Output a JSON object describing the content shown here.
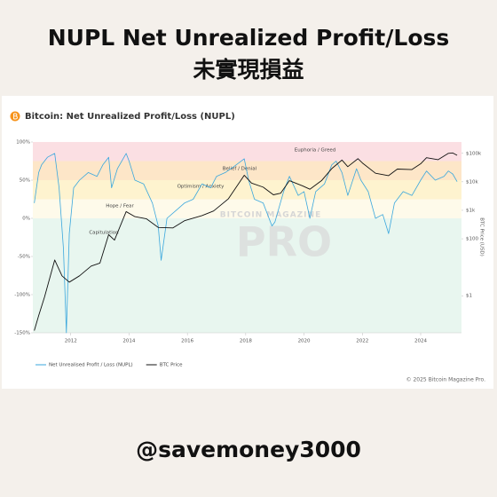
{
  "header": {
    "title": "NUPL Net Unrealized Profit/Loss",
    "subtitle": "未實現損益"
  },
  "chart_data": {
    "type": "line",
    "title": "Bitcoin: Net Unrealized Profit/Loss (NUPL)",
    "xlim": [
      2010.7,
      2025.4
    ],
    "xticks": [
      2012,
      2014,
      2016,
      2018,
      2020,
      2022,
      2024
    ],
    "ylim": [
      -150,
      100
    ],
    "yticks": [
      {
        "value": 100,
        "label": "100%"
      },
      {
        "value": 50,
        "label": "50%"
      },
      {
        "value": 0,
        "label": "0%"
      },
      {
        "value": -50,
        "label": "-50%"
      },
      {
        "value": -100,
        "label": "-100%"
      },
      {
        "value": -150,
        "label": "-150%"
      }
    ],
    "y2lim": [
      0.05,
      250000
    ],
    "y2scale": "log",
    "y2label": "BTC Price (USD)",
    "y2ticks": [
      {
        "value": 100000,
        "label": "$100k"
      },
      {
        "value": 10000,
        "label": "$10k"
      },
      {
        "value": 1000,
        "label": "$1k"
      },
      {
        "value": 100,
        "label": "$100"
      },
      {
        "value": 1,
        "label": "$1"
      }
    ],
    "zones": [
      {
        "label": "Euphoria / Greed",
        "from": 75,
        "to": 100,
        "color": "#fbdfe3"
      },
      {
        "label": "Belief / Denial",
        "from": 50,
        "to": 75,
        "color": "#fde6c8"
      },
      {
        "label": "Optimism / Anxiety",
        "from": 25,
        "to": 50,
        "color": "#fef3cf"
      },
      {
        "label": "Hope / Fear",
        "from": 0,
        "to": 25,
        "color": "#fefaea"
      },
      {
        "label": "Capitulation",
        "from": -150,
        "to": 0,
        "color": "#e8f6ef"
      }
    ],
    "series": [
      {
        "name": "Net Unrealised Profit / Loss (NUPL)",
        "color": "#3aa7dd",
        "x": [
          2010.75,
          2010.9,
          2011.0,
          2011.2,
          2011.45,
          2011.6,
          2011.75,
          2011.85,
          2011.95,
          2012.1,
          2012.3,
          2012.6,
          2012.9,
          2013.1,
          2013.3,
          2013.4,
          2013.6,
          2013.9,
          2014.0,
          2014.2,
          2014.5,
          2014.8,
          2015.0,
          2015.1,
          2015.3,
          2015.6,
          2015.9,
          2016.2,
          2016.5,
          2016.8,
          2017.0,
          2017.3,
          2017.6,
          2017.95,
          2018.1,
          2018.3,
          2018.6,
          2018.9,
          2019.0,
          2019.3,
          2019.5,
          2019.8,
          2020.0,
          2020.2,
          2020.4,
          2020.7,
          2020.95,
          2021.1,
          2021.3,
          2021.5,
          2021.8,
          2021.95,
          2022.2,
          2022.45,
          2022.7,
          2022.9,
          2023.1,
          2023.4,
          2023.7,
          2024.0,
          2024.2,
          2024.5,
          2024.8,
          2024.95,
          2025.1,
          2025.25
        ],
        "values": [
          20,
          60,
          70,
          80,
          85,
          40,
          -40,
          -150,
          -20,
          40,
          50,
          60,
          55,
          70,
          80,
          40,
          65,
          85,
          75,
          50,
          45,
          20,
          -10,
          -55,
          0,
          10,
          20,
          25,
          45,
          40,
          55,
          60,
          68,
          78,
          50,
          25,
          20,
          -10,
          -5,
          35,
          55,
          30,
          35,
          0,
          35,
          45,
          70,
          75,
          60,
          30,
          65,
          50,
          35,
          0,
          5,
          -20,
          20,
          35,
          30,
          50,
          62,
          50,
          55,
          62,
          58,
          48
        ]
      },
      {
        "name": "BTC Price",
        "color": "#111111",
        "axis": "y2",
        "x": [
          2010.75,
          2010.9,
          2011.1,
          2011.45,
          2011.7,
          2011.95,
          2012.3,
          2012.7,
          2013.0,
          2013.3,
          2013.5,
          2013.9,
          2014.2,
          2014.6,
          2015.0,
          2015.5,
          2015.9,
          2016.5,
          2016.9,
          2017.4,
          2017.95,
          2018.2,
          2018.6,
          2018.95,
          2019.2,
          2019.5,
          2019.95,
          2020.2,
          2020.6,
          2020.95,
          2021.3,
          2021.5,
          2021.85,
          2022.0,
          2022.45,
          2022.9,
          2023.2,
          2023.7,
          2024.0,
          2024.2,
          2024.6,
          2024.95,
          2025.1,
          2025.25
        ],
        "values": [
          0.06,
          0.2,
          0.9,
          18,
          5,
          3,
          5,
          11,
          14,
          140,
          90,
          900,
          600,
          500,
          250,
          240,
          430,
          650,
          950,
          2500,
          17000,
          9000,
          6500,
          3500,
          4000,
          11000,
          7200,
          5500,
          11000,
          29000,
          58000,
          34000,
          65000,
          46000,
          20000,
          16500,
          28000,
          27000,
          43000,
          70000,
          60000,
          100000,
          103000,
          85000
        ]
      }
    ],
    "watermark": [
      "BITCOIN MAGAZINE",
      "PRO"
    ],
    "copyright": "© 2025 Bitcoin Magazine Pro."
  },
  "footer": {
    "handle": "@savemoney3000"
  }
}
